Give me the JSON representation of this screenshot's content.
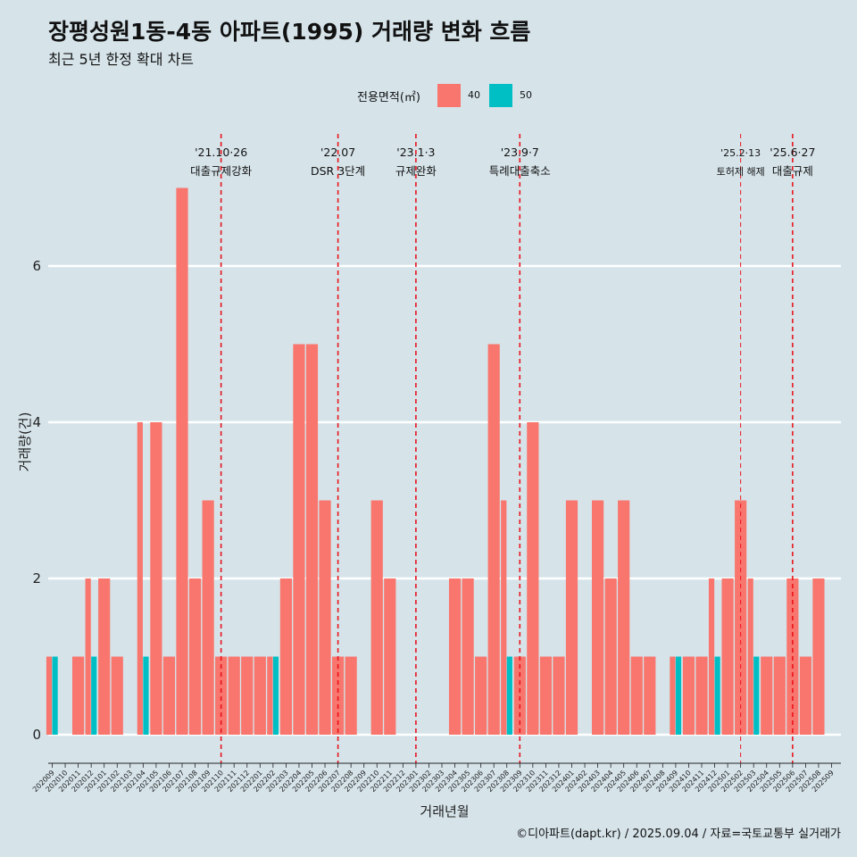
{
  "header": {
    "title": "장평성원1동-4동 아파트(1995) 거래량 변화 흐름",
    "subtitle": "최근 5년 한정 확대 차트"
  },
  "legend": {
    "title": "전용면적(㎡)",
    "items": [
      {
        "label": "40",
        "color": "#f8766d"
      },
      {
        "label": "50",
        "color": "#00bfc4"
      }
    ]
  },
  "caption": "©디아파트(dapt.kr) / 2025.09.04 / 자료=국토교통부 실거래가",
  "chart_data": {
    "type": "bar",
    "xlabel": "거래년월",
    "ylabel": "거래량(건)",
    "ylim": [
      0,
      7.5
    ],
    "yticks": [
      0,
      2,
      4,
      6
    ],
    "grid": true,
    "legend_position": "top",
    "categories": [
      "202009",
      "202010",
      "202011",
      "202012",
      "202101",
      "202102",
      "202103",
      "202104",
      "202105",
      "202106",
      "202107",
      "202108",
      "202109",
      "202110",
      "202111",
      "202112",
      "202201",
      "202202",
      "202203",
      "202204",
      "202205",
      "202206",
      "202207",
      "202208",
      "202209",
      "202210",
      "202211",
      "202212",
      "202301",
      "202302",
      "202303",
      "202304",
      "202305",
      "202306",
      "202307",
      "202308",
      "202309",
      "202310",
      "202311",
      "202312",
      "202401",
      "202402",
      "202403",
      "202404",
      "202405",
      "202406",
      "202407",
      "202408",
      "202409",
      "202410",
      "202411",
      "202412",
      "202501",
      "202502",
      "202503",
      "202504",
      "202505",
      "202506",
      "202507",
      "202508",
      "202509"
    ],
    "series": [
      {
        "name": "40",
        "color": "#f8766d",
        "values": [
          1,
          0,
          1,
          2,
          2,
          1,
          0,
          4,
          4,
          1,
          7,
          2,
          3,
          1,
          1,
          1,
          1,
          1,
          2,
          5,
          5,
          3,
          1,
          1,
          0,
          3,
          2,
          0,
          0,
          0,
          0,
          2,
          2,
          1,
          5,
          3,
          1,
          4,
          1,
          1,
          3,
          0,
          3,
          2,
          3,
          1,
          1,
          0,
          1,
          1,
          1,
          2,
          2,
          3,
          2,
          1,
          1,
          2,
          1,
          2,
          0
        ]
      },
      {
        "name": "50",
        "color": "#00bfc4",
        "values": [
          1,
          0,
          0,
          1,
          0,
          0,
          0,
          1,
          0,
          0,
          0,
          0,
          0,
          0,
          0,
          0,
          0,
          1,
          0,
          0,
          0,
          0,
          0,
          0,
          0,
          0,
          0,
          0,
          0,
          0,
          0,
          0,
          0,
          0,
          0,
          1,
          0,
          0,
          0,
          0,
          0,
          0,
          0,
          0,
          0,
          0,
          0,
          0,
          1,
          0,
          0,
          1,
          0,
          0,
          1,
          0,
          0,
          0,
          0,
          0,
          0
        ]
      }
    ],
    "annotations": [
      {
        "date": "2021-10-26",
        "x_category": "202110",
        "label_top": "'21.10·26",
        "label_bottom": "대출규제강화"
      },
      {
        "date": "2022-07",
        "x_category": "202207",
        "label_top": "'22.07",
        "label_bottom": "DSR 3단계"
      },
      {
        "date": "2023-01-03",
        "x_category": "202301",
        "label_top": "'23.1·3",
        "label_bottom": "규제완화"
      },
      {
        "date": "2023-09-07",
        "x_category": "202309",
        "label_top": "'23.9·7",
        "label_bottom": "특례대출축소"
      },
      {
        "date": "2025-02-13",
        "x_category": "202502",
        "label_top": "'25.2·13",
        "label_bottom": "토허제 해제"
      },
      {
        "date": "2025-06-27",
        "x_category": "202506",
        "label_top": "'25.6·27",
        "label_bottom": "대출규제"
      }
    ]
  }
}
